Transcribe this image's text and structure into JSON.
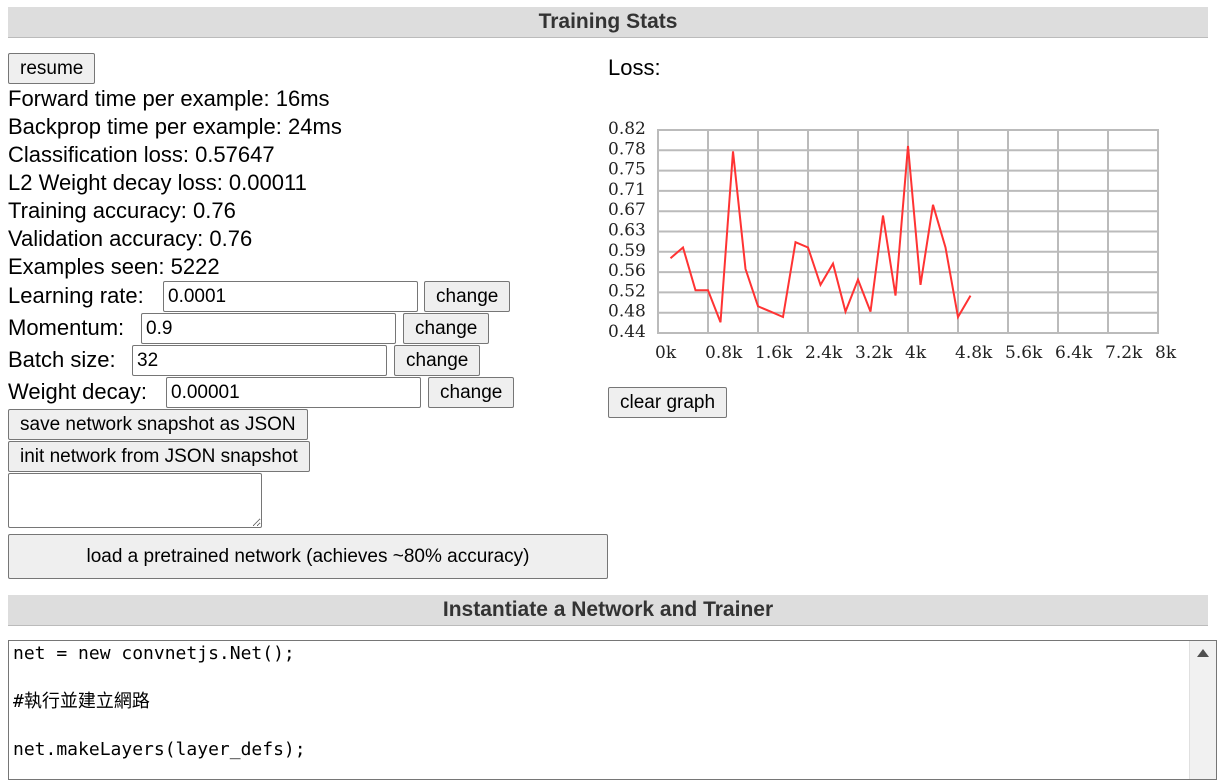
{
  "training_stats": {
    "header": "Training Stats",
    "resume_label": "resume",
    "stats": {
      "forward_time": "Forward time per example: 16ms",
      "backprop_time": "Backprop time per example: 24ms",
      "classification_loss": "Classification loss: 0.57647",
      "l2_decay_loss": "L2 Weight decay loss: 0.00011",
      "training_accuracy": "Training accuracy: 0.76",
      "validation_accuracy": "Validation accuracy: 0.76",
      "examples_seen": "Examples seen: 5222"
    },
    "fields": {
      "learning_rate": {
        "label": "Learning rate:",
        "value": "0.0001",
        "button": "change"
      },
      "momentum": {
        "label": "Momentum:",
        "value": "0.9",
        "button": "change"
      },
      "batch_size": {
        "label": "Batch size:",
        "value": "32",
        "button": "change"
      },
      "weight_decay": {
        "label": "Weight decay:",
        "value": "0.00001",
        "button": "change"
      }
    },
    "save_snapshot_label": "save network snapshot as JSON",
    "init_snapshot_label": "init network from JSON snapshot",
    "json_snapshot_value": "",
    "load_pretrained_label": "load a pretrained network (achieves ~80% accuracy)",
    "loss_label": "Loss:",
    "clear_graph_label": "clear graph"
  },
  "chart_data": {
    "type": "line",
    "title": "",
    "xlabel": "",
    "ylabel": "",
    "xlim": [
      0,
      8000
    ],
    "ylim": [
      0.44,
      0.82
    ],
    "grid": true,
    "x_tick_labels": [
      "0k",
      "0.8k",
      "1.6k",
      "2.4k",
      "3.2k",
      "4k",
      "4.8k",
      "5.6k",
      "6.4k",
      "7.2k",
      "8k"
    ],
    "x_tick_values": [
      0,
      800,
      1600,
      2400,
      3200,
      4000,
      4800,
      5600,
      6400,
      7200,
      8000
    ],
    "y_tick_labels": [
      "0.82",
      "0.78",
      "0.75",
      "0.71",
      "0.67",
      "0.63",
      "0.59",
      "0.56",
      "0.52",
      "0.48",
      "0.44"
    ],
    "y_tick_values": [
      0.82,
      0.78,
      0.75,
      0.71,
      0.67,
      0.63,
      0.59,
      0.56,
      0.52,
      0.48,
      0.44
    ],
    "series": [
      {
        "color": "#ff3333",
        "x": [
          200,
          400,
          600,
          800,
          1000,
          1200,
          1400,
          1600,
          1800,
          2000,
          2200,
          2400,
          2600,
          2800,
          3000,
          3200,
          3400,
          3600,
          3800,
          4000,
          4200,
          4400,
          4600,
          4800,
          5000
        ],
        "y": [
          0.58,
          0.6,
          0.52,
          0.52,
          0.46,
          0.78,
          0.56,
          0.49,
          0.48,
          0.47,
          0.61,
          0.6,
          0.53,
          0.57,
          0.48,
          0.54,
          0.48,
          0.66,
          0.51,
          0.79,
          0.53,
          0.68,
          0.6,
          0.47,
          0.51
        ]
      }
    ]
  },
  "instantiate": {
    "header": "Instantiate a Network and Trainer",
    "code_lines": [
      "net = new convnetjs.Net();",
      "",
      "#執行並建立網路",
      "",
      "net.makeLayers(layer_defs);"
    ]
  }
}
